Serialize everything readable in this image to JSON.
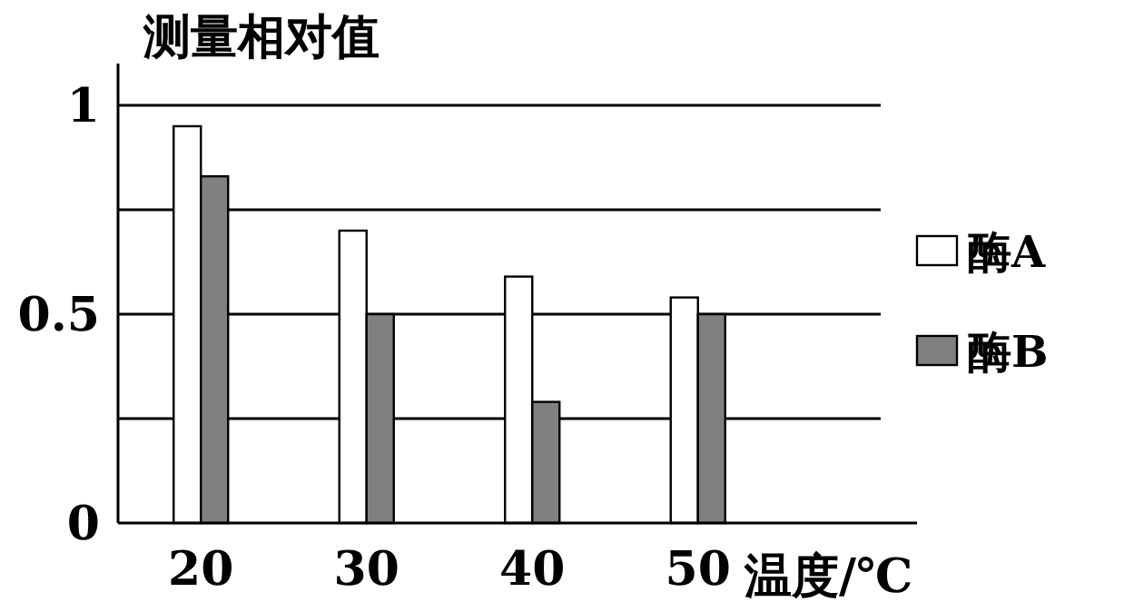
{
  "chart_data": {
    "type": "bar",
    "ylabel": "测量相对值",
    "xlabel": "温度/℃",
    "categories": [
      "20",
      "30",
      "40",
      "50"
    ],
    "series": [
      {
        "name": "酶A",
        "color": "#ffffff",
        "values": [
          0.95,
          0.7,
          0.59,
          0.54
        ]
      },
      {
        "name": "酶B",
        "color": "#808080",
        "values": [
          0.83,
          0.5,
          0.29,
          0.5
        ]
      }
    ],
    "ylim": [
      0,
      1.1
    ],
    "yticks": [
      0,
      {
        "value": 0.25,
        "label": null
      },
      0.5,
      {
        "value": 0.75,
        "label": null
      },
      1
    ],
    "grid": "y",
    "legend": "right"
  }
}
